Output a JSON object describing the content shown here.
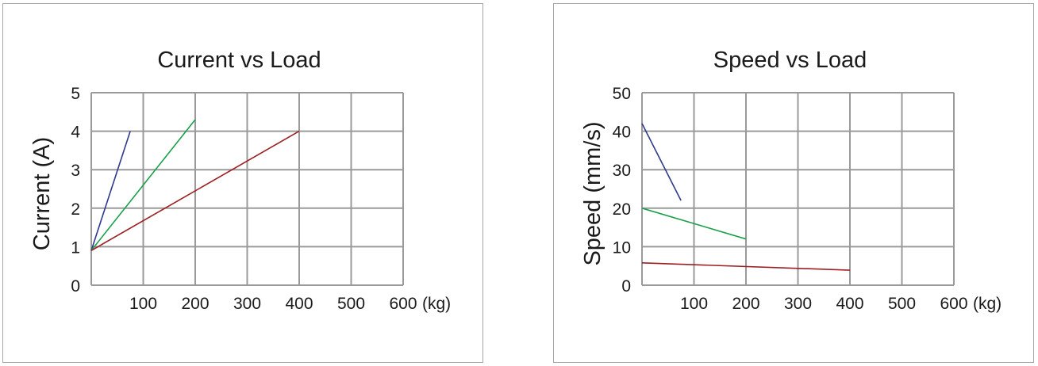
{
  "chart_data": [
    {
      "type": "line",
      "title": "Current vs Load",
      "xlabel": "",
      "x_unit": "(kg)",
      "ylabel": "Current (A)",
      "xlim": [
        0,
        600
      ],
      "ylim": [
        0,
        5
      ],
      "xticks": [
        100,
        200,
        300,
        400,
        500,
        600
      ],
      "yticks": [
        0,
        1,
        2,
        3,
        4,
        5
      ],
      "grid": true,
      "series": [
        {
          "color": "#2e3a8c",
          "x": [
            0,
            75
          ],
          "y": [
            0.9,
            4.0
          ]
        },
        {
          "color": "#1aa04a",
          "x": [
            0,
            200
          ],
          "y": [
            0.9,
            4.3
          ]
        },
        {
          "color": "#9c1f22",
          "x": [
            0,
            400
          ],
          "y": [
            0.9,
            4.0
          ]
        }
      ]
    },
    {
      "type": "line",
      "title": "Speed vs Load",
      "xlabel": "",
      "x_unit": "(kg)",
      "ylabel": "Speed (mm/s)",
      "xlim": [
        0,
        600
      ],
      "ylim": [
        0,
        50
      ],
      "xticks": [
        100,
        200,
        300,
        400,
        500,
        600
      ],
      "yticks": [
        0,
        10,
        20,
        30,
        40,
        50
      ],
      "grid": true,
      "series": [
        {
          "color": "#2e3a8c",
          "x": [
            0,
            75
          ],
          "y": [
            42,
            22
          ]
        },
        {
          "color": "#1aa04a",
          "x": [
            0,
            200
          ],
          "y": [
            20,
            12
          ]
        },
        {
          "color": "#9c1f22",
          "x": [
            0,
            400
          ],
          "y": [
            5.8,
            3.9
          ]
        }
      ]
    }
  ]
}
